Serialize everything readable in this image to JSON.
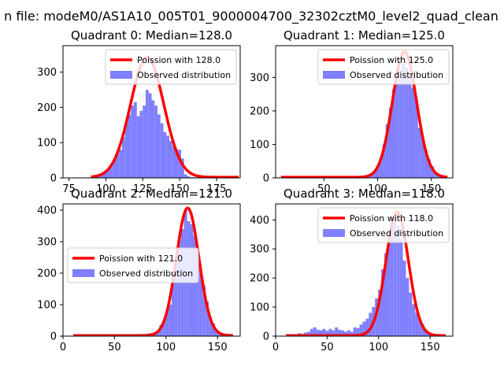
{
  "suptitle": "n file: modeM0/AS1A10_005T01_9000004700_32302cztM0_level2_quad_clean",
  "colors": {
    "fit": "#ff0000",
    "hist": "#8080ff",
    "axes": "#000000",
    "background": "#ffffff"
  },
  "chart_data": [
    {
      "type": "bar",
      "title": "Quadrant 0: Median=128.0",
      "median": 128.0,
      "legend_position": "upper-right",
      "legend": [
        "Poission with 128.0",
        "Observed distribution"
      ],
      "xlim": [
        71,
        191
      ],
      "ylim": [
        0,
        375
      ],
      "xticks": [
        75,
        100,
        125,
        150,
        175
      ],
      "yticks": [
        0,
        100,
        200,
        300
      ],
      "hist_bin_width": 2,
      "hist_x": [
        90,
        92,
        94,
        96,
        98,
        100,
        102,
        104,
        106,
        108,
        110,
        112,
        114,
        116,
        118,
        120,
        122,
        124,
        126,
        128,
        130,
        132,
        134,
        136,
        138,
        140,
        142,
        144,
        146,
        148,
        150,
        152,
        154,
        156,
        158,
        160
      ],
      "hist_y": [
        2,
        3,
        5,
        10,
        15,
        22,
        25,
        37,
        55,
        68,
        80,
        115,
        155,
        180,
        205,
        215,
        175,
        190,
        205,
        250,
        240,
        220,
        205,
        180,
        155,
        130,
        120,
        105,
        90,
        80,
        80,
        55,
        10,
        5,
        2,
        2
      ],
      "fit_x": [
        90,
        190
      ],
      "fit_peak": 340,
      "fit_sigma": 11.3
    },
    {
      "type": "bar",
      "title": "Quadrant 1: Median=125.0",
      "median": 125.0,
      "legend_position": "upper-right",
      "legend": [
        "Poission with 125.0",
        "Observed distribution"
      ],
      "xlim": [
        5,
        170
      ],
      "ylim": [
        0,
        395
      ],
      "xticks": [
        50,
        100,
        150
      ],
      "yticks": [
        0,
        100,
        200,
        300
      ],
      "hist_bin_width": 3,
      "hist_x": [
        85,
        88,
        91,
        94,
        97,
        100,
        103,
        106,
        109,
        112,
        115,
        118,
        121,
        124,
        127,
        130,
        133,
        136,
        139,
        142,
        145,
        148,
        151,
        154,
        157,
        160
      ],
      "hist_y": [
        2,
        3,
        5,
        10,
        18,
        35,
        60,
        100,
        160,
        210,
        265,
        295,
        300,
        340,
        330,
        300,
        270,
        240,
        150,
        120,
        80,
        55,
        35,
        15,
        8,
        3
      ],
      "fit_x": [
        10,
        165
      ],
      "fit_peak": 375,
      "fit_sigma": 11.2
    },
    {
      "type": "bar",
      "title": "Quadrant 2: Median=121.0",
      "median": 121.0,
      "legend_position": "center-left",
      "legend": [
        "Poission with 121.0",
        "Observed distribution"
      ],
      "xlim": [
        0,
        172
      ],
      "ylim": [
        0,
        420
      ],
      "xticks": [
        0,
        50,
        100,
        150
      ],
      "yticks": [
        0,
        100,
        200,
        300,
        400
      ],
      "hist_bin_width": 3,
      "hist_x": [
        80,
        83,
        86,
        89,
        92,
        95,
        98,
        101,
        104,
        107,
        110,
        113,
        116,
        119,
        122,
        125,
        128,
        131,
        134,
        137,
        140,
        143,
        146,
        149,
        152
      ],
      "hist_y": [
        4,
        8,
        10,
        12,
        15,
        35,
        45,
        80,
        100,
        190,
        240,
        305,
        340,
        400,
        365,
        355,
        320,
        250,
        200,
        160,
        110,
        60,
        40,
        20,
        10
      ],
      "fit_x": [
        10,
        165
      ],
      "fit_peak": 405,
      "fit_sigma": 11.0
    },
    {
      "type": "bar",
      "title": "Quadrant 3: Median=118.0",
      "median": 118.0,
      "legend_position": "upper-right",
      "legend": [
        "Poission with 118.0",
        "Observed distribution"
      ],
      "xlim": [
        0,
        172
      ],
      "ylim": [
        0,
        455
      ],
      "xticks": [
        0,
        50,
        100,
        150
      ],
      "yticks": [
        0,
        100,
        200,
        300,
        400
      ],
      "hist_bin_width": 3,
      "hist_x": [
        20,
        23,
        26,
        29,
        32,
        35,
        38,
        41,
        44,
        47,
        50,
        53,
        56,
        59,
        62,
        65,
        68,
        71,
        74,
        77,
        80,
        83,
        86,
        89,
        92,
        95,
        98,
        101,
        104,
        107,
        110,
        113,
        116,
        119,
        122,
        125,
        128,
        131,
        134,
        137,
        140,
        143,
        146,
        149,
        152,
        155
      ],
      "hist_y": [
        5,
        10,
        8,
        12,
        15,
        25,
        30,
        22,
        20,
        25,
        18,
        25,
        20,
        30,
        22,
        20,
        15,
        20,
        15,
        30,
        28,
        40,
        50,
        60,
        80,
        100,
        130,
        160,
        230,
        285,
        360,
        410,
        405,
        380,
        330,
        260,
        200,
        150,
        110,
        80,
        60,
        40,
        20,
        10,
        5,
        3
      ],
      "fit_x": [
        10,
        165
      ],
      "fit_peak": 425,
      "fit_sigma": 10.9
    }
  ]
}
